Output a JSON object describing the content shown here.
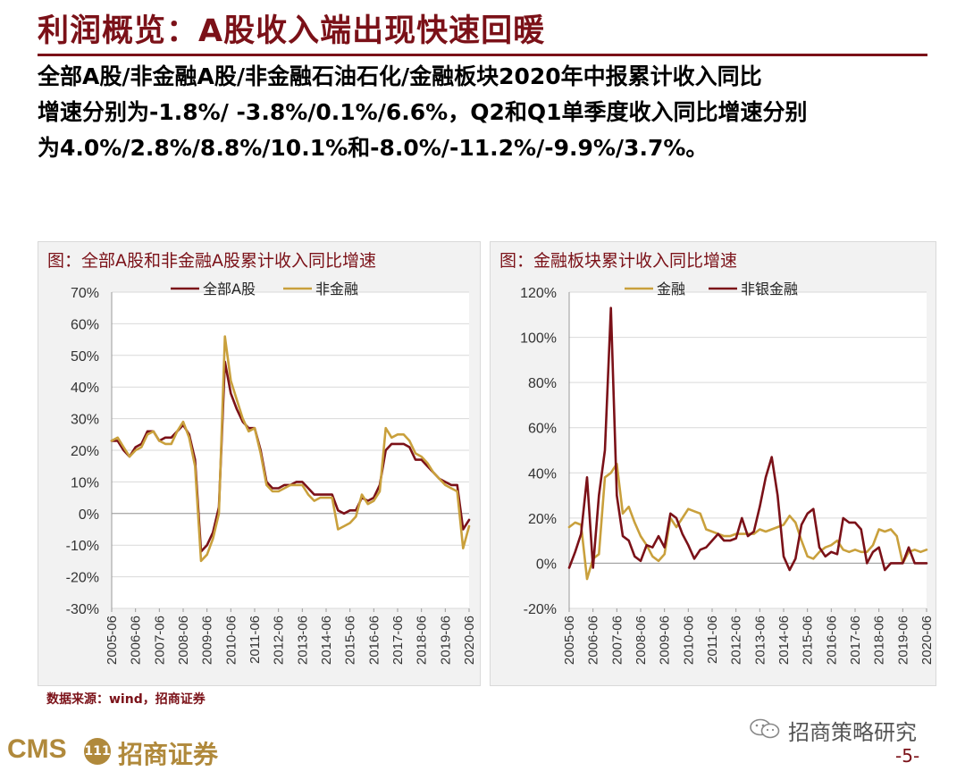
{
  "page": {
    "title": "利润概览：A股收入端出现快速回暖",
    "summary_lines": [
      "全部A股/非金融A股/非金融石油石化/金融板块2020年中报累计收入同比",
      "增速分别为-1.8%/ -3.8%/0.1%/6.6%，Q2和Q1单季度收入同比增速分别",
      "为4.0%/2.8%/8.8%/10.1%和-8.0%/-11.2%/-9.9%/3.7%。"
    ],
    "source": "数据来源：wind，招商证券",
    "logo_text": "CMS",
    "logo_badge": "111",
    "logo_cn": "招商证券",
    "wechat_label": "招商策略研究",
    "page_number": "-5-"
  },
  "colors": {
    "brand": "#7b1118",
    "dark_red": "#7b1118",
    "gold": "#c9a03c",
    "grid": "#d9d9d9",
    "plot_bg": "#ffffff",
    "panel_bg": "#f2f2f2"
  },
  "chart_data": [
    {
      "type": "line",
      "title": "图：全部A股和非金融A股累计收入同比增速",
      "xlabel": "",
      "ylabel": "",
      "ylim": [
        -30,
        70
      ],
      "yticks": [
        -30,
        -20,
        -10,
        0,
        10,
        20,
        30,
        40,
        50,
        60,
        70
      ],
      "ytick_labels": [
        "-30%",
        "-20%",
        "-10%",
        "0%",
        "10%",
        "20%",
        "30%",
        "40%",
        "50%",
        "60%",
        "70%"
      ],
      "xlim": [
        2005.5,
        2020.5
      ],
      "xtick_positions": [
        2005.5,
        2006.5,
        2007.5,
        2008.5,
        2009.5,
        2010.5,
        2011.5,
        2012.5,
        2013.5,
        2014.5,
        2015.5,
        2016.5,
        2017.5,
        2018.5,
        2019.5,
        2020.5
      ],
      "xtick_labels": [
        "2005-06",
        "2006-06",
        "2007-06",
        "2008-06",
        "2009-06",
        "2010-06",
        "2011-06",
        "2012-06",
        "2013-06",
        "2014-06",
        "2015-06",
        "2016-06",
        "2017-06",
        "2018-06",
        "2019-06",
        "2020-06"
      ],
      "legend_position": "top",
      "series": [
        {
          "name": "全部A股",
          "color": "#7b1118",
          "x": [
            2005.5,
            2005.75,
            2006.0,
            2006.25,
            2006.5,
            2006.75,
            2007.0,
            2007.25,
            2007.5,
            2007.75,
            2008.0,
            2008.25,
            2008.5,
            2008.75,
            2009.0,
            2009.25,
            2009.5,
            2009.75,
            2010.0,
            2010.25,
            2010.5,
            2010.75,
            2011.0,
            2011.25,
            2011.5,
            2011.75,
            2012.0,
            2012.25,
            2012.5,
            2012.75,
            2013.0,
            2013.25,
            2013.5,
            2013.75,
            2014.0,
            2014.25,
            2014.5,
            2014.75,
            2015.0,
            2015.25,
            2015.5,
            2015.75,
            2016.0,
            2016.25,
            2016.5,
            2016.75,
            2017.0,
            2017.25,
            2017.5,
            2017.75,
            2018.0,
            2018.25,
            2018.5,
            2018.75,
            2019.0,
            2019.25,
            2019.5,
            2019.75,
            2020.0,
            2020.25,
            2020.5
          ],
          "y": [
            23,
            23,
            20,
            18,
            21,
            22,
            26,
            26,
            23,
            24,
            24,
            26,
            28,
            25,
            17,
            -12,
            -10,
            -6,
            2,
            48,
            38,
            33,
            29,
            27,
            27,
            20,
            10,
            8,
            8,
            9,
            9,
            10,
            10,
            8,
            6,
            6,
            6,
            6,
            1,
            0,
            1,
            1,
            5,
            4,
            5,
            9,
            20,
            22,
            22,
            22,
            21,
            17,
            17,
            15,
            13,
            11,
            10,
            9,
            9,
            -5,
            -2
          ]
        },
        {
          "name": "非金融",
          "color": "#c9a03c",
          "x": [
            2005.5,
            2005.75,
            2006.0,
            2006.25,
            2006.5,
            2006.75,
            2007.0,
            2007.25,
            2007.5,
            2007.75,
            2008.0,
            2008.25,
            2008.5,
            2008.75,
            2009.0,
            2009.25,
            2009.5,
            2009.75,
            2010.0,
            2010.25,
            2010.5,
            2010.75,
            2011.0,
            2011.25,
            2011.5,
            2011.75,
            2012.0,
            2012.25,
            2012.5,
            2012.75,
            2013.0,
            2013.25,
            2013.5,
            2013.75,
            2014.0,
            2014.25,
            2014.5,
            2014.75,
            2015.0,
            2015.25,
            2015.5,
            2015.75,
            2016.0,
            2016.25,
            2016.5,
            2016.75,
            2017.0,
            2017.25,
            2017.5,
            2017.75,
            2018.0,
            2018.25,
            2018.5,
            2018.75,
            2019.0,
            2019.25,
            2019.5,
            2019.75,
            2020.0,
            2020.25,
            2020.5
          ],
          "y": [
            23,
            24,
            21,
            18,
            20,
            21,
            25,
            26,
            23,
            22,
            22,
            26,
            29,
            24,
            15,
            -15,
            -13,
            -8,
            0,
            56,
            42,
            36,
            30,
            26,
            27,
            19,
            9,
            7,
            7,
            8,
            9,
            9,
            9,
            6,
            4,
            5,
            5,
            5,
            -5,
            -4,
            -3,
            -1,
            6,
            3,
            4,
            7,
            27,
            24,
            25,
            25,
            23,
            19,
            18,
            16,
            13,
            11,
            9,
            8,
            7,
            -11,
            -4
          ]
        }
      ]
    },
    {
      "type": "line",
      "title": "图：金融板块累计收入同比增速",
      "xlabel": "",
      "ylabel": "",
      "ylim": [
        -20,
        120
      ],
      "yticks": [
        -20,
        0,
        20,
        40,
        60,
        80,
        100,
        120
      ],
      "ytick_labels": [
        "-20%",
        "0%",
        "20%",
        "40%",
        "60%",
        "80%",
        "100%",
        "120%"
      ],
      "xlim": [
        2005.5,
        2020.5
      ],
      "xtick_positions": [
        2005.5,
        2006.5,
        2007.5,
        2008.5,
        2009.5,
        2010.5,
        2011.5,
        2012.5,
        2013.5,
        2014.5,
        2015.5,
        2016.5,
        2017.5,
        2018.5,
        2019.5,
        2020.5
      ],
      "xtick_labels": [
        "2005-06",
        "2006-06",
        "2007-06",
        "2008-06",
        "2009-06",
        "2010-06",
        "2011-06",
        "2012-06",
        "2013-06",
        "2014-06",
        "2015-06",
        "2016-06",
        "2017-06",
        "2018-06",
        "2019-06",
        "2020-06"
      ],
      "legend_position": "top",
      "series": [
        {
          "name": "金融",
          "color": "#c9a03c",
          "x": [
            2005.5,
            2005.75,
            2006.0,
            2006.25,
            2006.5,
            2006.75,
            2007.0,
            2007.25,
            2007.5,
            2007.75,
            2008.0,
            2008.25,
            2008.5,
            2008.75,
            2009.0,
            2009.25,
            2009.5,
            2009.75,
            2010.0,
            2010.25,
            2010.5,
            2010.75,
            2011.0,
            2011.25,
            2011.5,
            2011.75,
            2012.0,
            2012.25,
            2012.5,
            2012.75,
            2013.0,
            2013.25,
            2013.5,
            2013.75,
            2014.0,
            2014.25,
            2014.5,
            2014.75,
            2015.0,
            2015.25,
            2015.5,
            2015.75,
            2016.0,
            2016.25,
            2016.5,
            2016.75,
            2017.0,
            2017.25,
            2017.5,
            2017.75,
            2018.0,
            2018.25,
            2018.5,
            2018.75,
            2019.0,
            2019.25,
            2019.5,
            2019.75,
            2020.0,
            2020.25,
            2020.5
          ],
          "y": [
            16,
            18,
            17,
            -7,
            2,
            4,
            38,
            40,
            44,
            22,
            25,
            18,
            12,
            8,
            3,
            1,
            4,
            20,
            16,
            20,
            24,
            23,
            22,
            15,
            14,
            13,
            12,
            12,
            13,
            13,
            13,
            13,
            15,
            14,
            15,
            16,
            17,
            21,
            18,
            10,
            3,
            2,
            5,
            7,
            8,
            10,
            6,
            5,
            6,
            5,
            5,
            8,
            15,
            14,
            15,
            12,
            0,
            5,
            6,
            5,
            6
          ]
        },
        {
          "name": "非银金融",
          "color": "#7b1118",
          "x": [
            2005.5,
            2005.75,
            2006.0,
            2006.25,
            2006.5,
            2006.75,
            2007.0,
            2007.25,
            2007.5,
            2007.75,
            2008.0,
            2008.25,
            2008.5,
            2008.75,
            2009.0,
            2009.25,
            2009.5,
            2009.75,
            2010.0,
            2010.25,
            2010.5,
            2010.75,
            2011.0,
            2011.25,
            2011.5,
            2011.75,
            2012.0,
            2012.25,
            2012.5,
            2012.75,
            2013.0,
            2013.25,
            2013.5,
            2013.75,
            2014.0,
            2014.25,
            2014.5,
            2014.75,
            2015.0,
            2015.25,
            2015.5,
            2015.75,
            2016.0,
            2016.25,
            2016.5,
            2016.75,
            2017.0,
            2017.25,
            2017.5,
            2017.75,
            2018.0,
            2018.25,
            2018.5,
            2018.75,
            2019.0,
            2019.25,
            2019.5,
            2019.75,
            2020.0,
            2020.25,
            2020.5
          ],
          "y": [
            -2,
            5,
            13,
            38,
            -2,
            30,
            50,
            113,
            30,
            12,
            10,
            3,
            1,
            8,
            7,
            12,
            7,
            22,
            20,
            13,
            8,
            2,
            6,
            7,
            10,
            13,
            10,
            10,
            11,
            20,
            12,
            14,
            25,
            38,
            47,
            30,
            3,
            -3,
            2,
            17,
            22,
            24,
            7,
            3,
            5,
            4,
            20,
            18,
            18,
            15,
            0,
            5,
            7,
            -3,
            0,
            0,
            0,
            7,
            0,
            0,
            0
          ]
        }
      ]
    }
  ]
}
